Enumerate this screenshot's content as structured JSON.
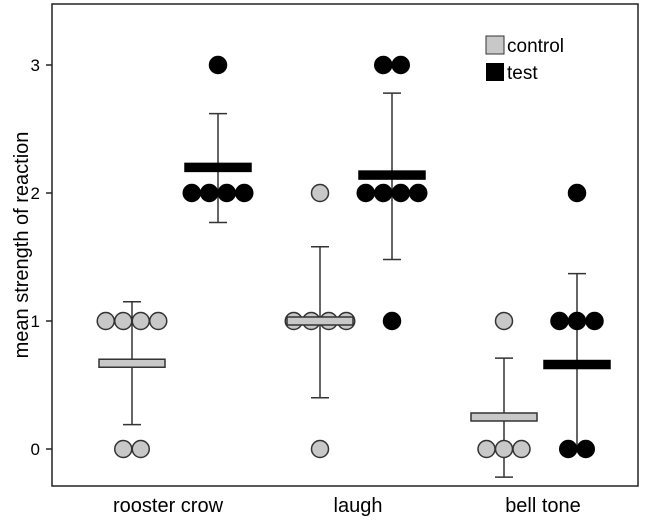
{
  "chart_data": {
    "type": "scatter",
    "title": "",
    "xlabel": "",
    "ylabel": "mean strength of reaction",
    "ylim": [
      -0.3,
      3.5
    ],
    "yticks": [
      "0",
      "1",
      "2",
      "3"
    ],
    "categories": [
      "rooster crow",
      "laugh",
      "bell tone"
    ],
    "legend": {
      "position": "top-right",
      "entries": [
        "control",
        "test"
      ]
    },
    "colors": {
      "control": "#c8c8c8",
      "test": "#000000",
      "stroke": "#333333"
    },
    "series": [
      {
        "name": "control",
        "points": [
          [
            1,
            1,
            1,
            1,
            0,
            0
          ],
          [
            2,
            1,
            1,
            1,
            1,
            0
          ],
          [
            1,
            0,
            0,
            0
          ]
        ],
        "mean": [
          0.67,
          1.0,
          0.25
        ],
        "err_low": [
          0.19,
          0.4,
          -0.22
        ],
        "err_high": [
          1.15,
          1.58,
          0.71
        ]
      },
      {
        "name": "test",
        "points": [
          [
            3,
            2,
            2,
            2,
            2
          ],
          [
            3,
            3,
            2,
            2,
            2,
            2,
            1
          ],
          [
            2,
            1,
            1,
            1,
            0,
            0
          ]
        ],
        "mean": [
          2.2,
          2.14,
          0.66
        ],
        "err_low": [
          1.77,
          1.48,
          -0.02
        ],
        "err_high": [
          2.62,
          2.78,
          1.37
        ]
      }
    ]
  }
}
